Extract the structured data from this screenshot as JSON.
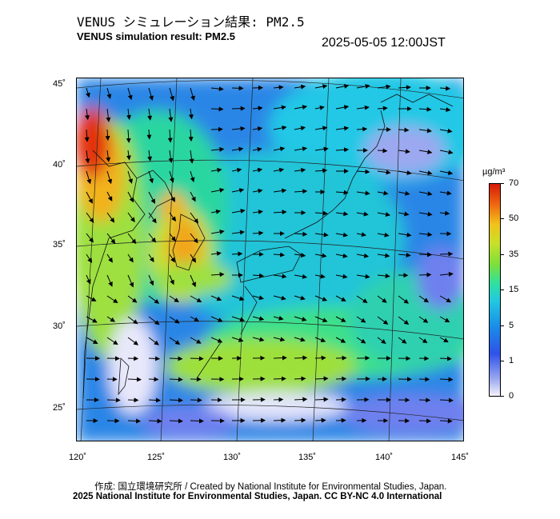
{
  "title_jp": "VENUS シミュレーション結果: PM2.5",
  "title_en": "VENUS simulation result: PM2.5",
  "timestamp": "2025-05-05 12:00JST",
  "lat_labels": [
    "45˚",
    "40˚",
    "35˚",
    "30˚",
    "25˚"
  ],
  "lon_labels": [
    "120˚",
    "125˚",
    "130˚",
    "135˚",
    "140˚",
    "145˚"
  ],
  "legend": {
    "unit": "µg/m³",
    "ticks": [
      "70",
      "50",
      "35",
      "15",
      "5",
      "1",
      "0"
    ],
    "colors": {
      "low": "#f4f4fb",
      "blue": "#2f52e8",
      "cyan": "#22c9e0",
      "green": "#7de03a",
      "yellow": "#f2c21a",
      "red": "#d61a0a"
    }
  },
  "credit_jp": "作成: 国立環境研究所 / Created by National Institute for Environmental Studies, Japan.",
  "credit_en": "2025 National Institute for Environmental Studies, Japan. CC BY-NC 4.0 International"
}
